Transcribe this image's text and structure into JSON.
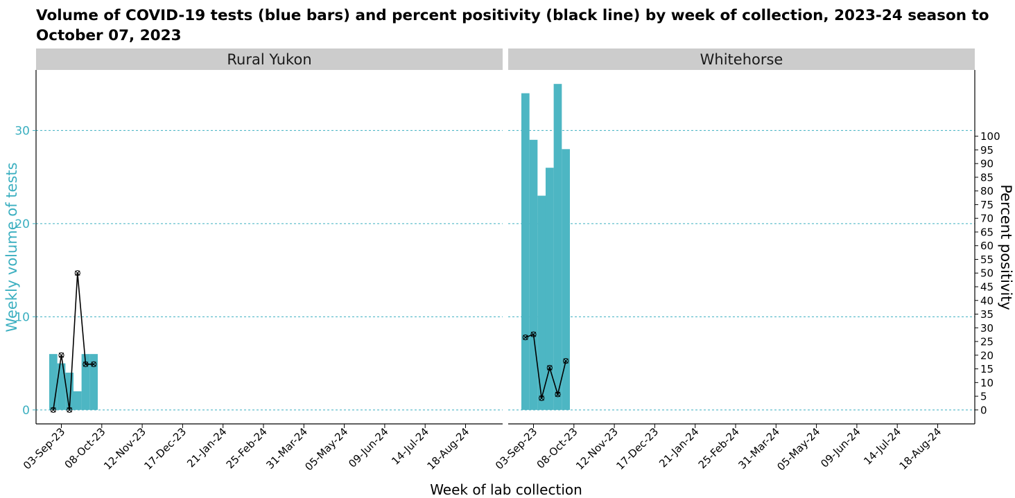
{
  "chart_data": {
    "type": "bar",
    "title": "Volume of COVID-19 tests (blue bars) and percent positivity (black line) by week of collection, 2023-24 season to October 07, 2023",
    "xlabel": "Week of lab collection",
    "ylabel": "Weekly volume of tests",
    "ylabel_right": "Percent positivity",
    "ylim": [
      -1.5,
      36.5
    ],
    "ylim_right": [
      -5.1,
      124.2
    ],
    "yticks": [
      0,
      10,
      20,
      30
    ],
    "yticks_right": [
      0,
      5,
      10,
      15,
      20,
      25,
      30,
      35,
      40,
      45,
      50,
      55,
      60,
      65,
      70,
      75,
      80,
      85,
      90,
      95,
      100
    ],
    "xticks": [
      "03-Sep-23",
      "08-Oct-23",
      "12-Nov-23",
      "17-Dec-23",
      "21-Jan-24",
      "25-Feb-24",
      "31-Mar-24",
      "05-May-24",
      "09-Jun-24",
      "14-Jul-24",
      "18-Aug-24"
    ],
    "bar_color": "#4DB6C3",
    "line_color": "#000000",
    "grid": "dashed horizontal at left-axis ticks",
    "panels": [
      {
        "name": "Rural Yukon",
        "weeks": [
          "27-Aug-23",
          "03-Sep-23",
          "10-Sep-23",
          "17-Sep-23",
          "24-Sep-23",
          "01-Oct-23"
        ],
        "tests": [
          6,
          5,
          4,
          2,
          6,
          6
        ],
        "percent_positive": [
          0,
          20,
          0,
          50,
          16.7,
          16.7
        ]
      },
      {
        "name": "Whitehorse",
        "weeks": [
          "27-Aug-23",
          "03-Sep-23",
          "10-Sep-23",
          "17-Sep-23",
          "24-Sep-23",
          "01-Oct-23"
        ],
        "tests": [
          34,
          29,
          23,
          26,
          35,
          28
        ],
        "percent_positive": [
          26.5,
          27.6,
          4.3,
          15.4,
          5.7,
          17.9
        ]
      }
    ]
  }
}
